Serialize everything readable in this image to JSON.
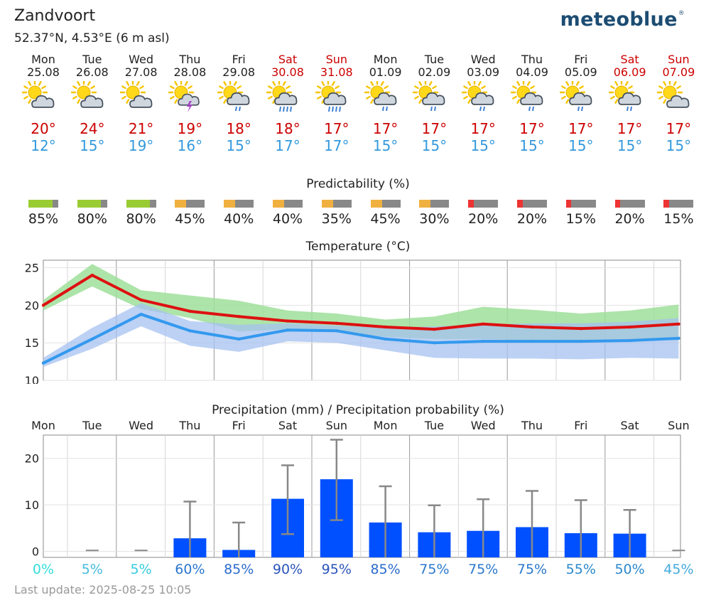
{
  "location": {
    "name": "Zandvoort",
    "coords": "52.37°N, 4.53°E (6 m asl)"
  },
  "brand": {
    "name": "meteoblue",
    "mark": "®"
  },
  "days": [
    {
      "name": "Mon",
      "date": "25.08",
      "weekend": false,
      "icon": "sun-cloud-icon",
      "tmax": "20°",
      "tmin": "12°"
    },
    {
      "name": "Tue",
      "date": "26.08",
      "weekend": false,
      "icon": "sun-cloud-icon",
      "tmax": "24°",
      "tmin": "15°"
    },
    {
      "name": "Wed",
      "date": "27.08",
      "weekend": false,
      "icon": "sun-cloud-icon",
      "tmax": "21°",
      "tmin": "19°"
    },
    {
      "name": "Thu",
      "date": "28.08",
      "weekend": false,
      "icon": "sun-thunder-icon",
      "tmax": "19°",
      "tmin": "16°"
    },
    {
      "name": "Fri",
      "date": "29.08",
      "weekend": false,
      "icon": "sun-rain-icon",
      "tmax": "18°",
      "tmin": "15°"
    },
    {
      "name": "Sat",
      "date": "30.08",
      "weekend": true,
      "icon": "sun-heavy-rain-icon",
      "tmax": "18°",
      "tmin": "17°"
    },
    {
      "name": "Sun",
      "date": "31.08",
      "weekend": true,
      "icon": "sun-heavy-rain-icon",
      "tmax": "17°",
      "tmin": "17°"
    },
    {
      "name": "Mon",
      "date": "01.09",
      "weekend": false,
      "icon": "sun-rain-icon",
      "tmax": "17°",
      "tmin": "15°"
    },
    {
      "name": "Tue",
      "date": "02.09",
      "weekend": false,
      "icon": "sun-rain-icon",
      "tmax": "17°",
      "tmin": "15°"
    },
    {
      "name": "Wed",
      "date": "03.09",
      "weekend": false,
      "icon": "sun-rain-icon",
      "tmax": "17°",
      "tmin": "15°"
    },
    {
      "name": "Thu",
      "date": "04.09",
      "weekend": false,
      "icon": "sun-rain-icon",
      "tmax": "17°",
      "tmin": "15°"
    },
    {
      "name": "Fri",
      "date": "05.09",
      "weekend": false,
      "icon": "sun-rain-icon",
      "tmax": "17°",
      "tmin": "15°"
    },
    {
      "name": "Sat",
      "date": "06.09",
      "weekend": true,
      "icon": "sun-rain-icon",
      "tmax": "17°",
      "tmin": "15°"
    },
    {
      "name": "Sun",
      "date": "07.09",
      "weekend": true,
      "icon": "sun-cloud-icon",
      "tmax": "17°",
      "tmin": "15°"
    }
  ],
  "predictability": {
    "title": "Predictability (%)",
    "values": [
      85,
      80,
      80,
      45,
      40,
      40,
      35,
      45,
      30,
      20,
      20,
      15,
      20,
      15
    ],
    "labels": [
      "85%",
      "80%",
      "80%",
      "45%",
      "40%",
      "40%",
      "35%",
      "45%",
      "30%",
      "20%",
      "20%",
      "15%",
      "20%",
      "15%"
    ],
    "colors": {
      "high": "#99cc33",
      "mid": "#f0b040",
      "low": "#ee3333",
      "rest": "#888888"
    }
  },
  "chart_data": [
    {
      "type": "line",
      "title": "Temperature (°C)",
      "x": [
        "Mon",
        "Tue",
        "Wed",
        "Thu",
        "Fri",
        "Sat",
        "Sun",
        "Mon",
        "Tue",
        "Wed",
        "Thu",
        "Fri",
        "Sat",
        "Sun"
      ],
      "ylim": [
        10,
        26
      ],
      "yticks": [
        "10",
        "15",
        "20",
        "25"
      ],
      "grid": true,
      "series": [
        {
          "color": "#dd1111",
          "values": [
            20,
            24,
            20.7,
            19.2,
            18.5,
            17.9,
            17.6,
            17.1,
            16.8,
            17.5,
            17.1,
            16.9,
            17.1,
            17.5
          ],
          "band_low": [
            19.3,
            22.5,
            19.5,
            18.3,
            16.5,
            16.8,
            16.5,
            15.8,
            15.5,
            15.5,
            15.3,
            15.4,
            15.5,
            15.3
          ],
          "band_high": [
            20.7,
            25.5,
            22,
            21.3,
            20.6,
            19.3,
            18.9,
            18.1,
            18.5,
            19.8,
            19.4,
            18.9,
            19.3,
            20.1
          ],
          "band_color": "#9fdf9a"
        },
        {
          "color": "#3399ee",
          "values": [
            12.3,
            15.5,
            18.8,
            16.6,
            15.5,
            16.7,
            16.6,
            15.5,
            15,
            15.2,
            15.2,
            15.2,
            15.3,
            15.6
          ],
          "band_low": [
            11.8,
            14.2,
            17.2,
            14.6,
            13.8,
            15.2,
            15.0,
            14.0,
            13.0,
            12.9,
            12.9,
            12.8,
            13.0,
            12.9
          ],
          "band_high": [
            13.0,
            17.0,
            20.3,
            17.9,
            17.4,
            17.6,
            17.3,
            17.0,
            17.2,
            17.4,
            17.6,
            17.6,
            17.8,
            18.3
          ],
          "band_color": "#a6c2f0"
        }
      ]
    },
    {
      "type": "bar",
      "title": "Precipitation (mm) / Precipitation probability (%)",
      "categories": [
        "Mon",
        "Tue",
        "Wed",
        "Thu",
        "Fri",
        "Sat",
        "Sun",
        "Mon",
        "Tue",
        "Wed",
        "Thu",
        "Fri",
        "Sat",
        "Sun"
      ],
      "values": [
        0,
        0,
        0,
        2.8,
        0.3,
        11.3,
        15.5,
        6.2,
        4.1,
        4.4,
        5.2,
        3.9,
        3.8,
        0
      ],
      "error_high": [
        0,
        0.2,
        0.2,
        10.7,
        6.2,
        18.5,
        24,
        14,
        9.9,
        11.2,
        13,
        11,
        8.9,
        0.2
      ],
      "error_low": [
        0,
        0,
        0,
        0,
        0,
        3.7,
        6.7,
        0,
        0,
        0,
        0,
        0,
        0,
        0
      ],
      "ylim": [
        -1.3,
        25
      ],
      "yticks": [
        "0",
        "10",
        "20"
      ],
      "bar_color": "#0050ff",
      "probability": [
        "0%",
        "5%",
        "5%",
        "60%",
        "85%",
        "90%",
        "95%",
        "85%",
        "75%",
        "75%",
        "75%",
        "55%",
        "50%",
        "45%"
      ],
      "probability_colors": [
        "#33dddd",
        "#44bbdd",
        "#33ccdd",
        "#2a77cc",
        "#2a6acc",
        "#2a55bb",
        "#2a55bb",
        "#2a6acc",
        "#2a77cc",
        "#2a77cc",
        "#2a77cc",
        "#2a88cc",
        "#2a88cc",
        "#44aadd"
      ]
    }
  ],
  "last_update": "Last update: 2025-08-25 10:05"
}
